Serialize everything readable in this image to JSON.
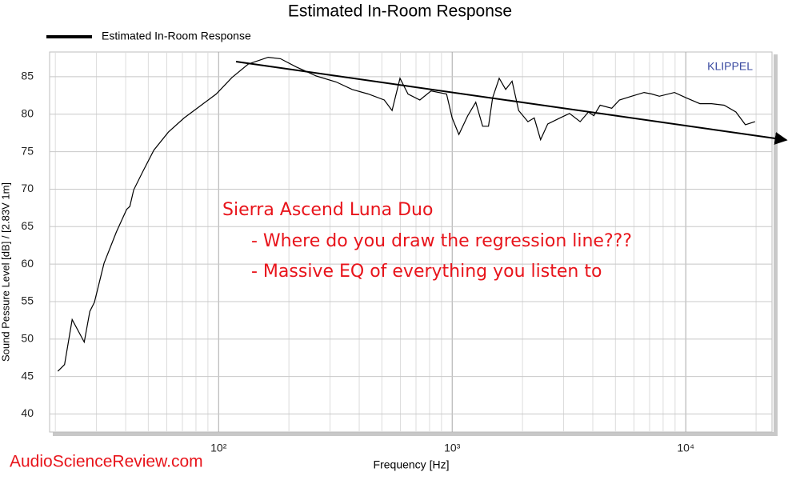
{
  "chart_data": {
    "type": "line",
    "title": "Estimated In-Room Response",
    "xlabel": "Frequency [Hz]",
    "ylabel": "Sound Pessure Level [dB]  / [2.83V 1m]",
    "brand": "KLIPPEL",
    "watermark": "AudioScienceReview.com",
    "annotations": [
      "Sierra Ascend Luna Duo",
      "- Where do you draw the regression line???",
      "- Massive EQ of everything you listen to"
    ],
    "xscale": "log",
    "grid": true,
    "legend": "top-left",
    "xlim": [
      18.9,
      23400
    ],
    "ylim": [
      37.6,
      88.3
    ],
    "xticks": [
      {
        "value": 100,
        "label": "10²"
      },
      {
        "value": 1000,
        "label": "10³"
      },
      {
        "value": 10000,
        "label": "10⁴"
      }
    ],
    "xminor_ticks": [
      20,
      30,
      40,
      50,
      60,
      70,
      80,
      90,
      200,
      300,
      400,
      500,
      600,
      700,
      800,
      900,
      2000,
      3000,
      4000,
      5000,
      6000,
      7000,
      8000,
      9000,
      20000
    ],
    "yticks": [
      40,
      45,
      50,
      55,
      60,
      65,
      70,
      75,
      80,
      85
    ],
    "series": [
      {
        "name": "Estimated In-Room Response",
        "color": "#000000",
        "x": [
          20.5,
          21.9,
          23.6,
          26.6,
          28.1,
          29.4,
          32.3,
          36.5,
          40.4,
          41.7,
          43.3,
          47.3,
          52.8,
          60.9,
          71.2,
          83.4,
          97.7,
          114,
          134,
          163,
          184,
          215,
          262,
          319,
          373,
          437,
          512,
          553,
          598,
          647,
          727,
          812,
          946,
          1000,
          1068,
          1166,
          1262,
          1350,
          1430,
          1490,
          1590,
          1695,
          1805,
          1925,
          2110,
          2245,
          2390,
          2565,
          2895,
          3180,
          3530,
          3830,
          4040,
          4300,
          4820,
          5200,
          5860,
          6630,
          7150,
          7710,
          8950,
          10000,
          11500,
          12900,
          14600,
          16400,
          18000,
          19800
        ],
        "values": [
          45.7,
          46.6,
          52.6,
          49.6,
          53.7,
          54.9,
          60.1,
          64.3,
          67.3,
          67.7,
          69.9,
          72.3,
          75.2,
          77.6,
          79.5,
          81.1,
          82.7,
          84.9,
          86.7,
          87.6,
          87.4,
          86.3,
          85.1,
          84.3,
          83.3,
          82.7,
          81.9,
          80.5,
          84.8,
          82.7,
          81.9,
          83.1,
          82.7,
          79.5,
          77.3,
          79.8,
          81.6,
          78.4,
          78.4,
          82.2,
          84.8,
          83.3,
          84.4,
          80.5,
          79.0,
          79.5,
          76.6,
          78.7,
          79.5,
          80.1,
          79.0,
          80.3,
          79.8,
          81.2,
          80.8,
          81.9,
          82.4,
          82.9,
          82.7,
          82.4,
          82.9,
          82.2,
          81.4,
          81.4,
          81.2,
          80.3,
          78.6,
          79.0
        ]
      }
    ]
  }
}
